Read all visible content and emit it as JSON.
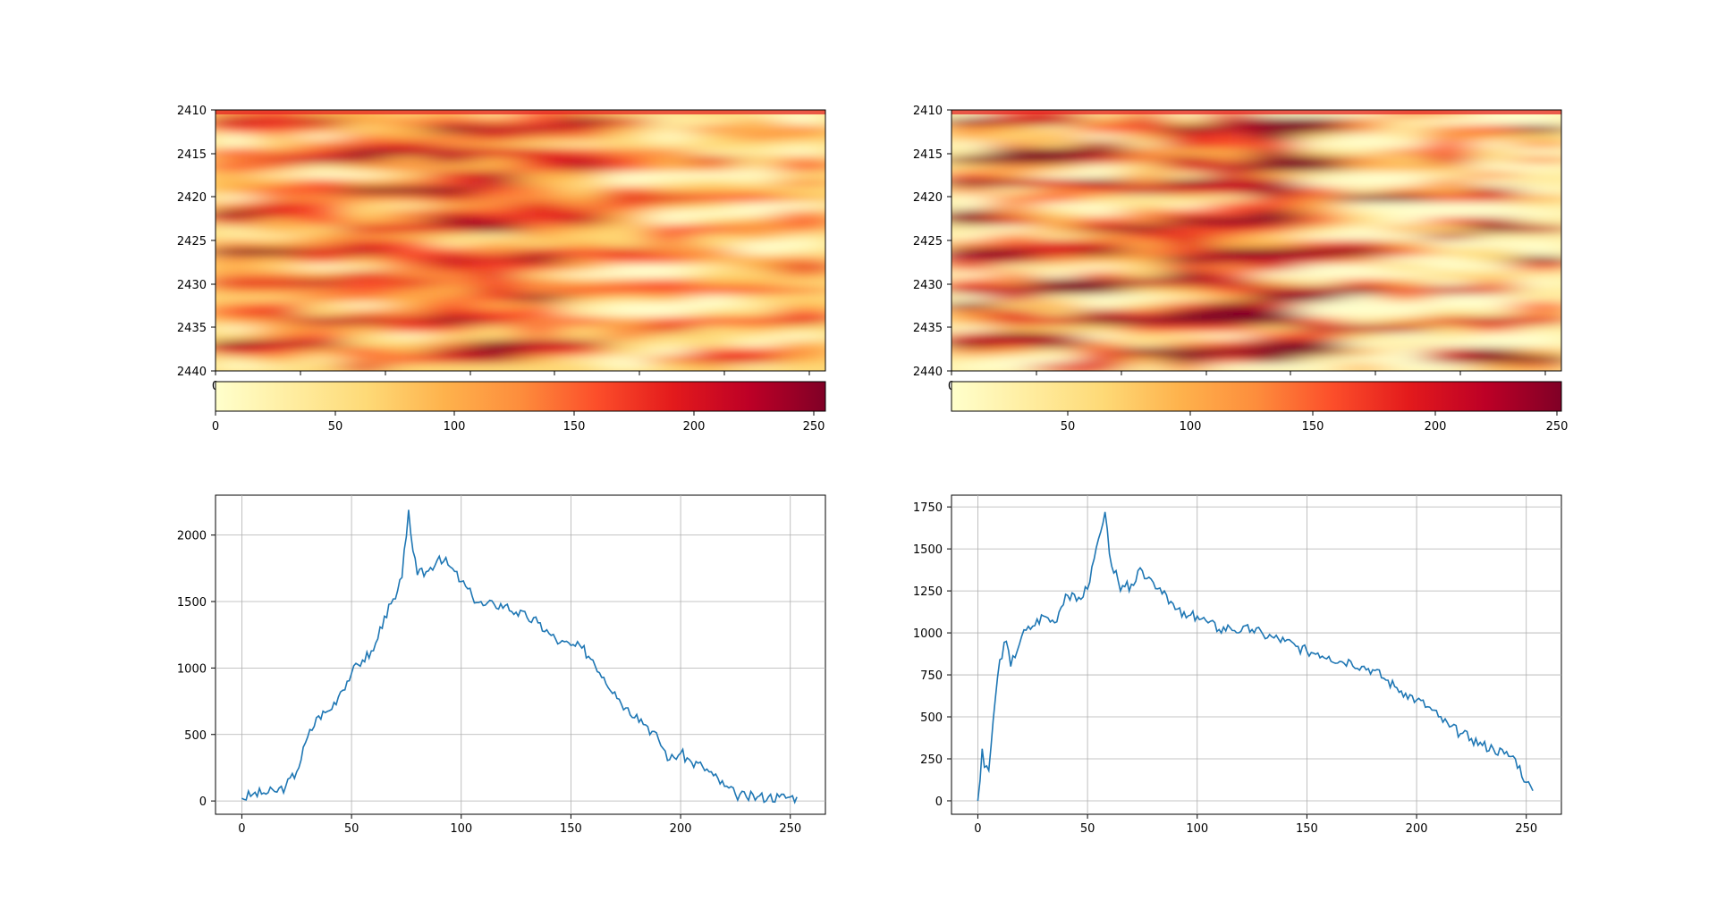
{
  "chart_data": [
    {
      "type": "heatmap",
      "title": "",
      "ylim": [
        2410,
        2440
      ],
      "y_ticks": [
        "2410",
        "2415",
        "2420",
        "2425",
        "2430",
        "2435",
        "2440"
      ],
      "x_ticks": [
        "0"
      ],
      "colormap": "YlOrRd",
      "value_range": [
        0,
        255
      ],
      "color_stops": [
        "#ffffcc",
        "#ffeda0",
        "#fed976",
        "#feb24c",
        "#fd8d3c",
        "#fc4e2a",
        "#e31a1c",
        "#bd0026",
        "#800026"
      ],
      "colorbar": {
        "orientation": "horizontal",
        "ticks": [
          "0",
          "50",
          "100",
          "150",
          "200",
          "250"
        ]
      }
    },
    {
      "type": "heatmap",
      "title": "",
      "ylim": [
        2410,
        2440
      ],
      "y_ticks": [
        "2410",
        "2415",
        "2420",
        "2425",
        "2430",
        "2435",
        "2440"
      ],
      "x_ticks": [
        "0"
      ],
      "colormap": "YlOrRd",
      "value_range": [
        0,
        255
      ],
      "color_stops": [
        "#ffffcc",
        "#ffeda0",
        "#fed976",
        "#feb24c",
        "#fd8d3c",
        "#fc4e2a",
        "#e31a1c",
        "#bd0026",
        "#800026"
      ],
      "colorbar": {
        "orientation": "horizontal",
        "ticks": [
          "50",
          "100",
          "150",
          "200",
          "250"
        ]
      }
    },
    {
      "type": "line",
      "xlabel": "",
      "ylabel": "",
      "xlim": [
        -12,
        266
      ],
      "ylim": [
        -100,
        2300
      ],
      "x_ticks": [
        "0",
        "50",
        "100",
        "150",
        "200",
        "250"
      ],
      "y_ticks": [
        "0",
        "500",
        "1000",
        "1500",
        "2000"
      ],
      "grid": true,
      "line_color": "#1f77b4",
      "x": [
        0,
        5,
        10,
        15,
        20,
        25,
        30,
        35,
        40,
        45,
        50,
        55,
        60,
        65,
        70,
        73,
        76,
        78,
        80,
        85,
        90,
        95,
        100,
        105,
        110,
        115,
        120,
        125,
        130,
        135,
        140,
        145,
        150,
        155,
        160,
        165,
        170,
        175,
        180,
        185,
        190,
        195,
        200,
        205,
        210,
        215,
        220,
        225,
        230,
        235,
        240,
        245,
        250,
        253
      ],
      "y": [
        20,
        50,
        60,
        70,
        110,
        220,
        480,
        640,
        680,
        820,
        960,
        1060,
        1130,
        1390,
        1520,
        1680,
        2190,
        1880,
        1700,
        1730,
        1840,
        1760,
        1650,
        1540,
        1470,
        1480,
        1470,
        1420,
        1380,
        1340,
        1260,
        1190,
        1170,
        1150,
        1060,
        930,
        820,
        700,
        650,
        560,
        460,
        310,
        360,
        290,
        260,
        190,
        110,
        50,
        30,
        30,
        30,
        30,
        30,
        30
      ]
    },
    {
      "type": "line",
      "xlabel": "",
      "ylabel": "",
      "xlim": [
        -12,
        266
      ],
      "ylim": [
        -80,
        1820
      ],
      "x_ticks": [
        "0",
        "50",
        "100",
        "150",
        "200",
        "250"
      ],
      "y_ticks": [
        "0",
        "250",
        "500",
        "750",
        "1000",
        "1250",
        "1500",
        "1750"
      ],
      "grid": true,
      "line_color": "#1f77b4",
      "x": [
        0,
        1,
        2,
        3,
        5,
        7,
        10,
        13,
        15,
        20,
        25,
        30,
        35,
        40,
        45,
        50,
        53,
        55,
        56,
        58,
        60,
        65,
        70,
        75,
        80,
        85,
        90,
        95,
        100,
        105,
        110,
        115,
        120,
        125,
        130,
        135,
        140,
        145,
        150,
        155,
        160,
        165,
        170,
        175,
        180,
        185,
        190,
        195,
        200,
        205,
        210,
        215,
        220,
        225,
        230,
        235,
        240,
        245,
        250,
        253
      ],
      "y": [
        0,
        120,
        310,
        200,
        180,
        480,
        840,
        950,
        800,
        980,
        1040,
        1100,
        1060,
        1230,
        1190,
        1260,
        1440,
        1560,
        1600,
        1720,
        1470,
        1250,
        1290,
        1370,
        1300,
        1250,
        1140,
        1090,
        1100,
        1060,
        1020,
        1030,
        1010,
        1020,
        990,
        970,
        950,
        920,
        890,
        880,
        860,
        830,
        830,
        800,
        780,
        730,
        680,
        640,
        600,
        560,
        500,
        440,
        400,
        370,
        330,
        310,
        280,
        250,
        110,
        60
      ]
    }
  ]
}
